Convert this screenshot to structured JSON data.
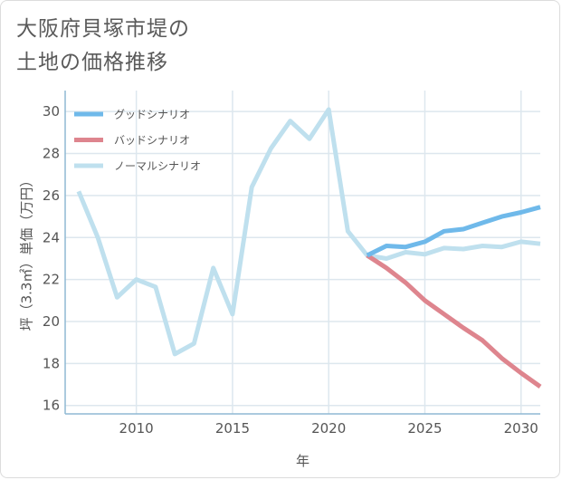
{
  "title": {
    "line1": "大阪府貝塚市堤の",
    "line2": "土地の価格推移"
  },
  "colors": {
    "good": "#6fb9ea",
    "bad": "#de858e",
    "normal": "#bfe0ee",
    "grid": "#dde7ee",
    "axis": "#8fb9d3"
  },
  "chart_data": {
    "type": "line",
    "xlabel": "年",
    "ylabel": "坪（3.3㎡）単価（万円）",
    "xlim": [
      2006.3,
      2031
    ],
    "ylim": [
      15.6,
      31.0
    ],
    "xticks": [
      2010,
      2015,
      2020,
      2025,
      2030
    ],
    "yticks": [
      16,
      18,
      20,
      22,
      24,
      26,
      28,
      30
    ],
    "grid": true,
    "legend_position": "top-left",
    "series": [
      {
        "name": "グッドシナリオ",
        "color_key": "good",
        "x": [
          2022,
          2023,
          2024,
          2025,
          2026,
          2027,
          2028,
          2029,
          2030,
          2031
        ],
        "y": [
          23.15,
          23.6,
          23.55,
          23.8,
          24.3,
          24.4,
          24.7,
          25.0,
          25.2,
          25.45
        ]
      },
      {
        "name": "バッドシナリオ",
        "color_key": "bad",
        "x": [
          2022,
          2023,
          2024,
          2025,
          2026,
          2027,
          2028,
          2029,
          2030,
          2031
        ],
        "y": [
          23.15,
          22.55,
          21.85,
          21.0,
          20.35,
          19.7,
          19.1,
          18.25,
          17.55,
          16.9
        ]
      },
      {
        "name": "ノーマルシナリオ",
        "color_key": "normal",
        "x": [
          2007,
          2008,
          2009,
          2010,
          2011,
          2012,
          2013,
          2014,
          2015,
          2016,
          2017,
          2018,
          2019,
          2020,
          2021,
          2022,
          2023,
          2024,
          2025,
          2026,
          2027,
          2028,
          2029,
          2030,
          2031
        ],
        "y": [
          26.2,
          24.0,
          21.15,
          22.0,
          21.65,
          18.45,
          18.95,
          22.55,
          20.35,
          26.4,
          28.25,
          29.55,
          28.7,
          30.1,
          24.3,
          23.15,
          23.0,
          23.3,
          23.2,
          23.5,
          23.45,
          23.6,
          23.55,
          23.8,
          23.7
        ]
      }
    ]
  }
}
